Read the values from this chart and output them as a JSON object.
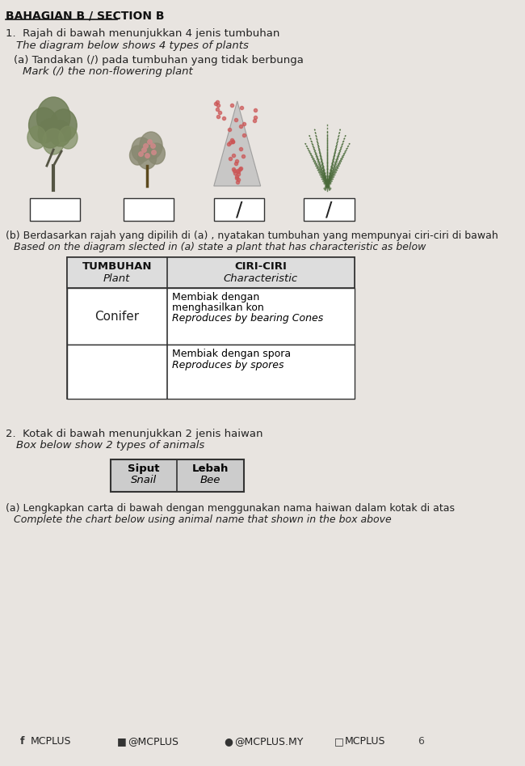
{
  "bg_color": "#e8e4e0",
  "header_text": "BAHAGIAN B / SECTION B",
  "q1_text1": "1.  Rajah di bawah menunjukkan 4 jenis tumbuhan",
  "q1_text2": "The diagram below shows 4 types of plants",
  "qa_text1": "(a) Tandakan (/) pada tumbuhan yang tidak berbunga",
  "qa_text2": "Mark (/) the non-flowering plant",
  "qb_text1": "(b) Berdasarkan rajah yang dipilih di (a) , nyatakan tumbuhan yang mempunyai ciri-ciri di bawah",
  "qb_text2": "Based on the diagram slected in (a) state a plant that has characteristic as below",
  "table1_col1_header": "TUMBUHAN\nPlant",
  "table1_col2_header": "CIRI-CIRI\nCharacteristic",
  "table1_row1_col1": "Conifer",
  "table1_row1_col2": "Membiak dengan\nmenghasilkan kon\nReproduces by bearing Cones",
  "table1_row2_col2": "Membiak dengan spora\nReproduces by spores",
  "q2_text1": "2.  Kotak di bawah menunjukkan 2 jenis haiwan",
  "q2_text2": "Box below show 2 types of animals",
  "animal_box": [
    [
      "Siput\nSnail",
      "Lebah\nBee"
    ]
  ],
  "q2a_text1": "(a) Lengkapkan carta di bawah dengan menggunakan nama haiwan dalam kotak di atas",
  "q2a_text2": "Complete the chart below using animal name that shown in the box above",
  "footer_text": "MCPLUS    @MCPLUS    @MCPLUS.MY    MCPLUS",
  "text_color": "#222222"
}
